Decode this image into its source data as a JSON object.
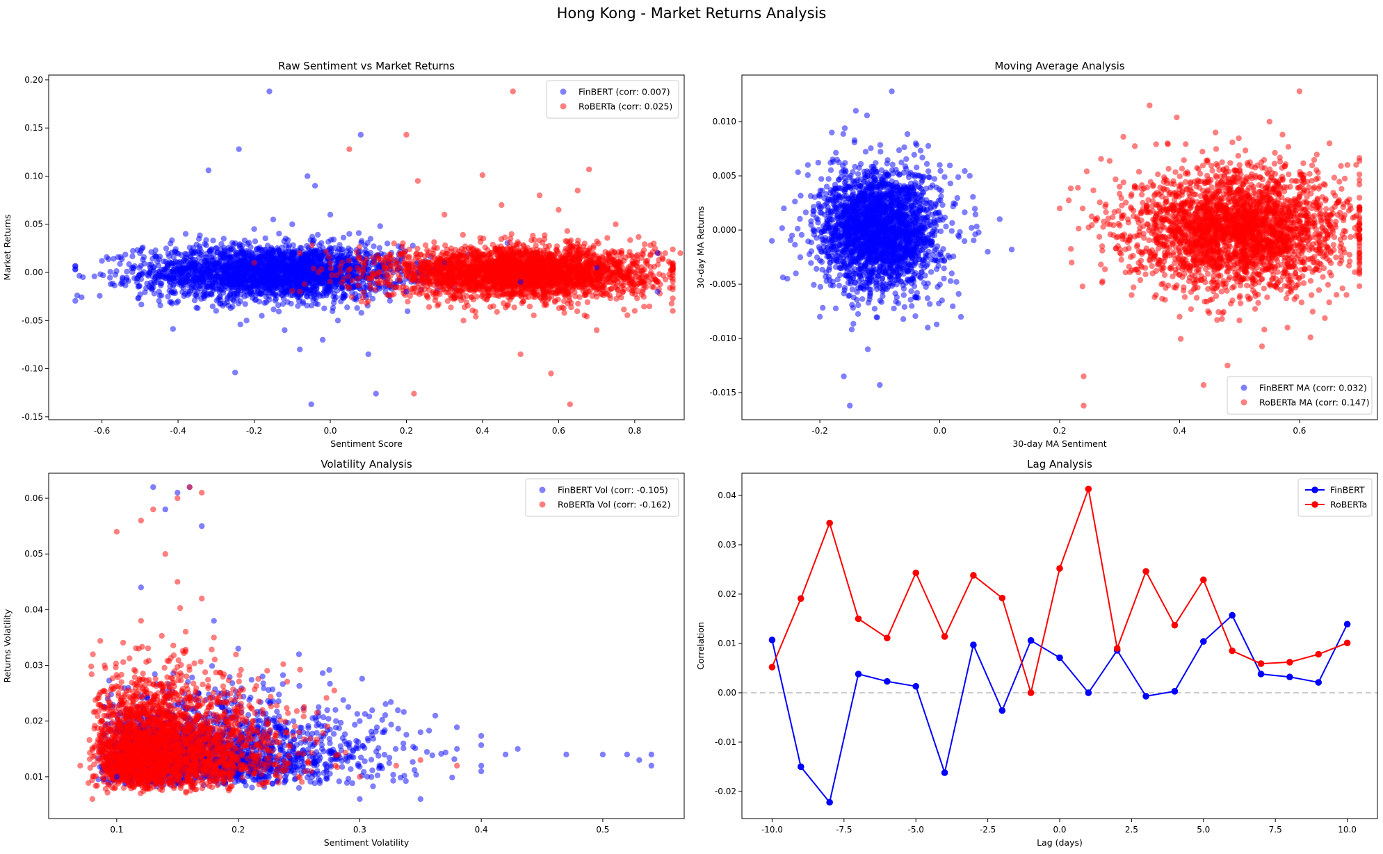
{
  "suptitle": "Hong Kong - Market Returns Analysis",
  "chart_data": [
    {
      "type": "scatter",
      "title": "Raw Sentiment vs Market Returns",
      "xlabel": "Sentiment Score",
      "ylabel": "Market Returns",
      "xlim": [
        -0.74,
        0.93
      ],
      "ylim": [
        -0.153,
        0.205
      ],
      "xticks": [
        -0.6,
        -0.4,
        -0.2,
        0.0,
        0.2,
        0.4,
        0.6,
        0.8
      ],
      "xtick_labels": [
        "-0.6",
        "-0.4",
        "-0.2",
        "0.0",
        "0.2",
        "0.4",
        "0.6",
        "0.8"
      ],
      "yticks": [
        -0.15,
        -0.1,
        -0.05,
        0.0,
        0.05,
        0.1,
        0.15,
        0.2
      ],
      "ytick_labels": [
        "-0.15",
        "-0.10",
        "-0.05",
        "0.00",
        "0.05",
        "0.10",
        "0.15",
        "0.20"
      ],
      "grid": false,
      "legend_position": "top-right",
      "series": [
        {
          "name": "FinBERT (corr: 0.007)",
          "color": "#0000ff",
          "points": [
            [
              -0.65,
              -0.005
            ],
            [
              -0.6,
              0.012
            ],
            [
              -0.55,
              -0.012
            ],
            [
              -0.5,
              0.02
            ],
            [
              -0.45,
              -0.02
            ],
            [
              -0.42,
              0.03
            ],
            [
              -0.4,
              -0.03
            ],
            [
              -0.38,
              0.04
            ],
            [
              -0.35,
              -0.025
            ],
            [
              -0.32,
              0.106
            ],
            [
              -0.3,
              -0.04
            ],
            [
              -0.28,
              0.035
            ],
            [
              -0.25,
              -0.104
            ],
            [
              -0.24,
              0.128
            ],
            [
              -0.22,
              -0.05
            ],
            [
              -0.2,
              0.045
            ],
            [
              -0.18,
              -0.045
            ],
            [
              -0.16,
              0.188
            ],
            [
              -0.15,
              0.055
            ],
            [
              -0.12,
              -0.06
            ],
            [
              -0.1,
              0.05
            ],
            [
              -0.08,
              -0.08
            ],
            [
              -0.06,
              0.1
            ],
            [
              -0.05,
              -0.137
            ],
            [
              -0.04,
              0.09
            ],
            [
              -0.02,
              -0.07
            ],
            [
              0.0,
              0.06
            ],
            [
              0.02,
              -0.05
            ],
            [
              0.05,
              0.04
            ],
            [
              0.08,
              0.143
            ],
            [
              0.1,
              -0.085
            ],
            [
              0.12,
              -0.126
            ],
            [
              0.15,
              0.03
            ],
            [
              0.2,
              -0.02
            ],
            [
              0.3,
              0.01
            ],
            [
              0.5,
              -0.01
            ],
            [
              0.7,
              0.005
            ],
            [
              0.86,
              0.02
            ],
            [
              0.86,
              -0.02
            ],
            [
              -0.3,
              0.01
            ],
            [
              -0.2,
              -0.01
            ],
            [
              -0.1,
              0.02
            ],
            [
              0.0,
              -0.02
            ],
            [
              0.1,
              0.01
            ]
          ]
        },
        {
          "name": "RoBERTa (corr: 0.025)",
          "color": "#ff0000",
          "points": [
            [
              -0.2,
              0.01
            ],
            [
              -0.08,
              0.02
            ],
            [
              -0.08,
              -0.02
            ],
            [
              0.0,
              0.01
            ],
            [
              0.05,
              0.128
            ],
            [
              0.1,
              -0.03
            ],
            [
              0.2,
              0.143
            ],
            [
              0.22,
              -0.126
            ],
            [
              0.23,
              0.095
            ],
            [
              0.3,
              0.06
            ],
            [
              0.35,
              -0.05
            ],
            [
              0.4,
              0.101
            ],
            [
              0.45,
              0.07
            ],
            [
              0.48,
              0.188
            ],
            [
              0.5,
              -0.085
            ],
            [
              0.55,
              0.08
            ],
            [
              0.58,
              -0.105
            ],
            [
              0.6,
              0.065
            ],
            [
              0.63,
              -0.137
            ],
            [
              0.65,
              0.085
            ],
            [
              0.68,
              0.107
            ],
            [
              0.7,
              -0.06
            ],
            [
              0.75,
              0.05
            ],
            [
              0.8,
              -0.04
            ],
            [
              0.85,
              0.03
            ],
            [
              0.88,
              0.02
            ],
            [
              0.9,
              -0.04
            ],
            [
              0.92,
              0.02
            ],
            [
              0.3,
              0.01
            ],
            [
              0.4,
              -0.01
            ],
            [
              0.5,
              0.02
            ],
            [
              0.6,
              -0.02
            ],
            [
              0.7,
              0.01
            ],
            [
              0.8,
              0.0
            ]
          ]
        }
      ]
    },
    {
      "type": "scatter",
      "title": "Moving Average Analysis",
      "xlabel": "30-day MA Sentiment",
      "ylabel": "30-day MA Returns",
      "xlim": [
        -0.33,
        0.73
      ],
      "ylim": [
        -0.0175,
        0.0143
      ],
      "xticks": [
        -0.2,
        0.0,
        0.2,
        0.4,
        0.6
      ],
      "xtick_labels": [
        "-0.2",
        "0.0",
        "0.2",
        "0.4",
        "0.6"
      ],
      "yticks": [
        -0.015,
        -0.01,
        -0.005,
        0.0,
        0.005,
        0.01
      ],
      "ytick_labels": [
        "-0.015",
        "-0.010",
        "-0.005",
        "0.000",
        "0.005",
        "0.010"
      ],
      "grid": false,
      "legend_position": "bottom-right",
      "series": [
        {
          "name": "FinBERT MA (corr: 0.032)",
          "color": "#0000ff",
          "points": [
            [
              -0.28,
              -0.001
            ],
            [
              -0.26,
              0.002
            ],
            [
              -0.24,
              -0.004
            ],
            [
              -0.22,
              0.006
            ],
            [
              -0.2,
              -0.008
            ],
            [
              -0.18,
              0.009
            ],
            [
              -0.16,
              -0.0135
            ],
            [
              -0.15,
              -0.0162
            ],
            [
              -0.14,
              0.011
            ],
            [
              -0.12,
              -0.011
            ],
            [
              -0.1,
              -0.0143
            ],
            [
              -0.08,
              0.0128
            ],
            [
              -0.06,
              -0.006
            ],
            [
              -0.04,
              0.008
            ],
            [
              -0.02,
              -0.009
            ],
            [
              0.0,
              0.006
            ],
            [
              0.02,
              -0.004
            ],
            [
              0.05,
              0.005
            ],
            [
              0.08,
              -0.002
            ],
            [
              0.1,
              0.001
            ],
            [
              0.12,
              -0.0018
            ],
            [
              -0.2,
              0.002
            ],
            [
              -0.1,
              0.0
            ],
            [
              -0.05,
              -0.002
            ]
          ]
        },
        {
          "name": "RoBERTa MA (corr: 0.147)",
          "color": "#ff0000",
          "points": [
            [
              0.2,
              0.002
            ],
            [
              0.22,
              -0.003
            ],
            [
              0.24,
              -0.0162
            ],
            [
              0.24,
              -0.0135
            ],
            [
              0.26,
              0.001
            ],
            [
              0.3,
              0.004
            ],
            [
              0.32,
              -0.006
            ],
            [
              0.35,
              0.0115
            ],
            [
              0.38,
              0.008
            ],
            [
              0.4,
              -0.008
            ],
            [
              0.44,
              -0.0143
            ],
            [
              0.46,
              0.009
            ],
            [
              0.48,
              -0.0125
            ],
            [
              0.5,
              0.006
            ],
            [
              0.55,
              0.01
            ],
            [
              0.58,
              -0.009
            ],
            [
              0.6,
              0.0128
            ],
            [
              0.62,
              -0.006
            ],
            [
              0.65,
              0.008
            ],
            [
              0.68,
              0.006
            ],
            [
              0.7,
              0.001
            ],
            [
              0.7,
              -0.003
            ],
            [
              0.45,
              0.0
            ],
            [
              0.55,
              0.002
            ],
            [
              0.35,
              -0.002
            ]
          ]
        }
      ]
    },
    {
      "type": "scatter",
      "title": "Volatility Analysis",
      "xlabel": "Sentiment Volatility",
      "ylabel": "Returns Volatility",
      "xlim": [
        0.044,
        0.567
      ],
      "ylim": [
        0.0025,
        0.0645
      ],
      "xticks": [
        0.1,
        0.2,
        0.3,
        0.4,
        0.5
      ],
      "xtick_labels": [
        "0.1",
        "0.2",
        "0.3",
        "0.4",
        "0.5"
      ],
      "yticks": [
        0.01,
        0.02,
        0.03,
        0.04,
        0.05,
        0.06
      ],
      "ytick_labels": [
        "0.01",
        "0.02",
        "0.03",
        "0.04",
        "0.05",
        "0.06"
      ],
      "grid": false,
      "legend_position": "top-right",
      "series": [
        {
          "name": "FinBERT Vol (corr: -0.105)",
          "color": "#0000ff",
          "points": [
            [
              0.1,
              0.01
            ],
            [
              0.12,
              0.044
            ],
            [
              0.13,
              0.062
            ],
            [
              0.14,
              0.058
            ],
            [
              0.15,
              0.061
            ],
            [
              0.16,
              0.062
            ],
            [
              0.17,
              0.055
            ],
            [
              0.18,
              0.038
            ],
            [
              0.2,
              0.033
            ],
            [
              0.22,
              0.028
            ],
            [
              0.25,
              0.032
            ],
            [
              0.28,
              0.022
            ],
            [
              0.3,
              0.02
            ],
            [
              0.32,
              0.018
            ],
            [
              0.35,
              0.018
            ],
            [
              0.38,
              0.015
            ],
            [
              0.4,
              0.012
            ],
            [
              0.42,
              0.014
            ],
            [
              0.43,
              0.015
            ],
            [
              0.47,
              0.014
            ],
            [
              0.5,
              0.014
            ],
            [
              0.52,
              0.014
            ],
            [
              0.53,
              0.013
            ],
            [
              0.54,
              0.014
            ],
            [
              0.54,
              0.012
            ],
            [
              0.3,
              0.006
            ],
            [
              0.35,
              0.006
            ],
            [
              0.25,
              0.008
            ]
          ]
        },
        {
          "name": "RoBERTa Vol (corr: -0.162)",
          "color": "#ff0000",
          "points": [
            [
              0.07,
              0.012
            ],
            [
              0.08,
              0.006
            ],
            [
              0.09,
              0.03
            ],
            [
              0.1,
              0.054
            ],
            [
              0.12,
              0.056
            ],
            [
              0.13,
              0.058
            ],
            [
              0.14,
              0.05
            ],
            [
              0.15,
              0.06
            ],
            [
              0.16,
              0.062
            ],
            [
              0.17,
              0.061
            ],
            [
              0.18,
              0.035
            ],
            [
              0.2,
              0.025
            ],
            [
              0.22,
              0.022
            ],
            [
              0.25,
              0.018
            ],
            [
              0.28,
              0.012
            ],
            [
              0.3,
              0.01
            ],
            [
              0.33,
              0.012
            ],
            [
              0.35,
              0.013
            ],
            [
              0.38,
              0.012
            ],
            [
              0.12,
              0.038
            ],
            [
              0.15,
              0.045
            ],
            [
              0.17,
              0.042
            ]
          ]
        }
      ]
    },
    {
      "type": "line",
      "title": "Lag Analysis",
      "xlabel": "Lag (days)",
      "ylabel": "Correlation",
      "xlim": [
        -11.05,
        11.05
      ],
      "ylim": [
        -0.0255,
        0.0445
      ],
      "xticks": [
        -10.0,
        -7.5,
        -5.0,
        -2.5,
        0.0,
        2.5,
        5.0,
        7.5,
        10.0
      ],
      "xtick_labels": [
        "-10.0",
        "-7.5",
        "-5.0",
        "-2.5",
        "0.0",
        "2.5",
        "5.0",
        "7.5",
        "10.0"
      ],
      "yticks": [
        -0.02,
        -0.01,
        0.0,
        0.01,
        0.02,
        0.03,
        0.04
      ],
      "ytick_labels": [
        "-0.02",
        "-0.01",
        "0.00",
        "0.01",
        "0.02",
        "0.03",
        "0.04"
      ],
      "grid": false,
      "reference_line": 0.0,
      "legend_position": "top-right",
      "x": [
        -10,
        -9,
        -8,
        -7,
        -6,
        -5,
        -4,
        -3,
        -2,
        -1,
        0,
        1,
        2,
        3,
        4,
        5,
        6,
        7,
        8,
        9,
        10
      ],
      "series": [
        {
          "name": "FinBERT",
          "color": "#0000ff",
          "values": [
            0.0107,
            -0.015,
            -0.0222,
            0.0038,
            0.0023,
            0.0013,
            -0.0162,
            0.0097,
            -0.0036,
            0.0106,
            0.0071,
            0.0,
            0.0086,
            -0.0007,
            0.0003,
            0.0104,
            0.0157,
            0.0038,
            0.0032,
            0.0021,
            0.0139
          ]
        },
        {
          "name": "RoBERTa",
          "color": "#ff0000",
          "values": [
            0.0052,
            0.0191,
            0.0344,
            0.015,
            0.0111,
            0.0243,
            0.0114,
            0.0238,
            0.0192,
            0.0,
            0.0252,
            0.0413,
            0.009,
            0.0246,
            0.0137,
            0.0229,
            0.0085,
            0.0059,
            0.0062,
            0.0078,
            0.0101
          ]
        }
      ]
    }
  ]
}
